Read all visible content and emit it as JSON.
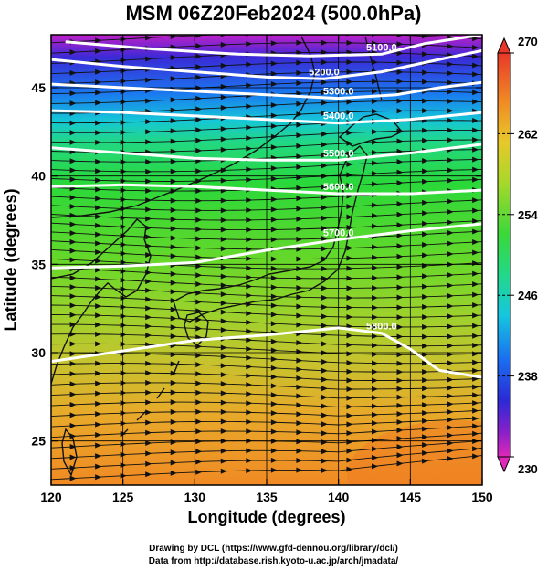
{
  "title": "MSM 06Z20Feb2024 (500.0hPa)",
  "chart": {
    "xlabel": "Longitude (degrees)",
    "ylabel": "Latitude  (degrees)",
    "xlim": [
      120,
      150
    ],
    "ylim": [
      22.5,
      48
    ],
    "xticks": [
      "120",
      "125",
      "130",
      "135",
      "140",
      "145",
      "150"
    ],
    "yticks": [
      "25",
      "30",
      "35",
      "40",
      "45"
    ],
    "contours": [
      {
        "label": "5100.0",
        "points": [
          [
            121,
            47.6
          ],
          [
            127,
            47.2
          ],
          [
            133,
            46.9
          ],
          [
            138,
            46.8
          ],
          [
            143,
            46.9
          ],
          [
            146,
            47.5
          ],
          [
            150,
            48
          ]
        ]
      },
      {
        "label": "5200.0",
        "points": [
          [
            120,
            46.6
          ],
          [
            125,
            46.2
          ],
          [
            130,
            45.9
          ],
          [
            135,
            45.6
          ],
          [
            139,
            45.5
          ],
          [
            143,
            45.9
          ],
          [
            147,
            46.6
          ],
          [
            150,
            47.1
          ]
        ]
      },
      {
        "label": "5300.0",
        "points": [
          [
            120,
            45.2
          ],
          [
            125,
            45.0
          ],
          [
            130,
            44.8
          ],
          [
            135,
            44.6
          ],
          [
            140,
            44.4
          ],
          [
            144,
            44.6
          ],
          [
            147,
            45.0
          ],
          [
            150,
            45.3
          ]
        ]
      },
      {
        "label": "5400.0",
        "points": [
          [
            120,
            43.7
          ],
          [
            125,
            43.6
          ],
          [
            130,
            43.4
          ],
          [
            135,
            43.2
          ],
          [
            140,
            43.0
          ],
          [
            145,
            43.2
          ],
          [
            150,
            43.6
          ]
        ]
      },
      {
        "label": "5500.0",
        "points": [
          [
            120,
            41.6
          ],
          [
            125,
            41.3
          ],
          [
            130,
            41.0
          ],
          [
            135,
            40.9
          ],
          [
            140,
            40.9
          ],
          [
            145,
            41.3
          ],
          [
            150,
            41.8
          ]
        ]
      },
      {
        "label": "5600.0",
        "points": [
          [
            120,
            39.4
          ],
          [
            125,
            39.5
          ],
          [
            130,
            39.4
          ],
          [
            135,
            39.2
          ],
          [
            140,
            39.0
          ],
          [
            145,
            39.0
          ],
          [
            150,
            39.2
          ]
        ]
      },
      {
        "label": "5700.0",
        "points": [
          [
            120,
            34.8
          ],
          [
            125,
            34.9
          ],
          [
            130,
            35.1
          ],
          [
            135,
            35.8
          ],
          [
            140,
            36.4
          ],
          [
            145,
            36.9
          ],
          [
            150,
            37.3
          ]
        ]
      },
      {
        "label": "5800.0",
        "points": [
          [
            120,
            29.5
          ],
          [
            125,
            30.1
          ],
          [
            130,
            30.7
          ],
          [
            135,
            31.0
          ],
          [
            140,
            31.4
          ],
          [
            143,
            31.1
          ],
          [
            145,
            30.2
          ],
          [
            147,
            29.0
          ],
          [
            150,
            28.6
          ]
        ]
      }
    ]
  },
  "colorbar": {
    "min": 230,
    "max": 270,
    "labels": [
      "270",
      "262",
      "254",
      "246",
      "238",
      "230"
    ]
  },
  "credits": {
    "line1": "Drawing by DCL (https://www.gfd-dennou.org/library/dcl/)",
    "line2": "Data from http://database.rish.kyoto-u.ac.jp/arch/jmadata/"
  }
}
